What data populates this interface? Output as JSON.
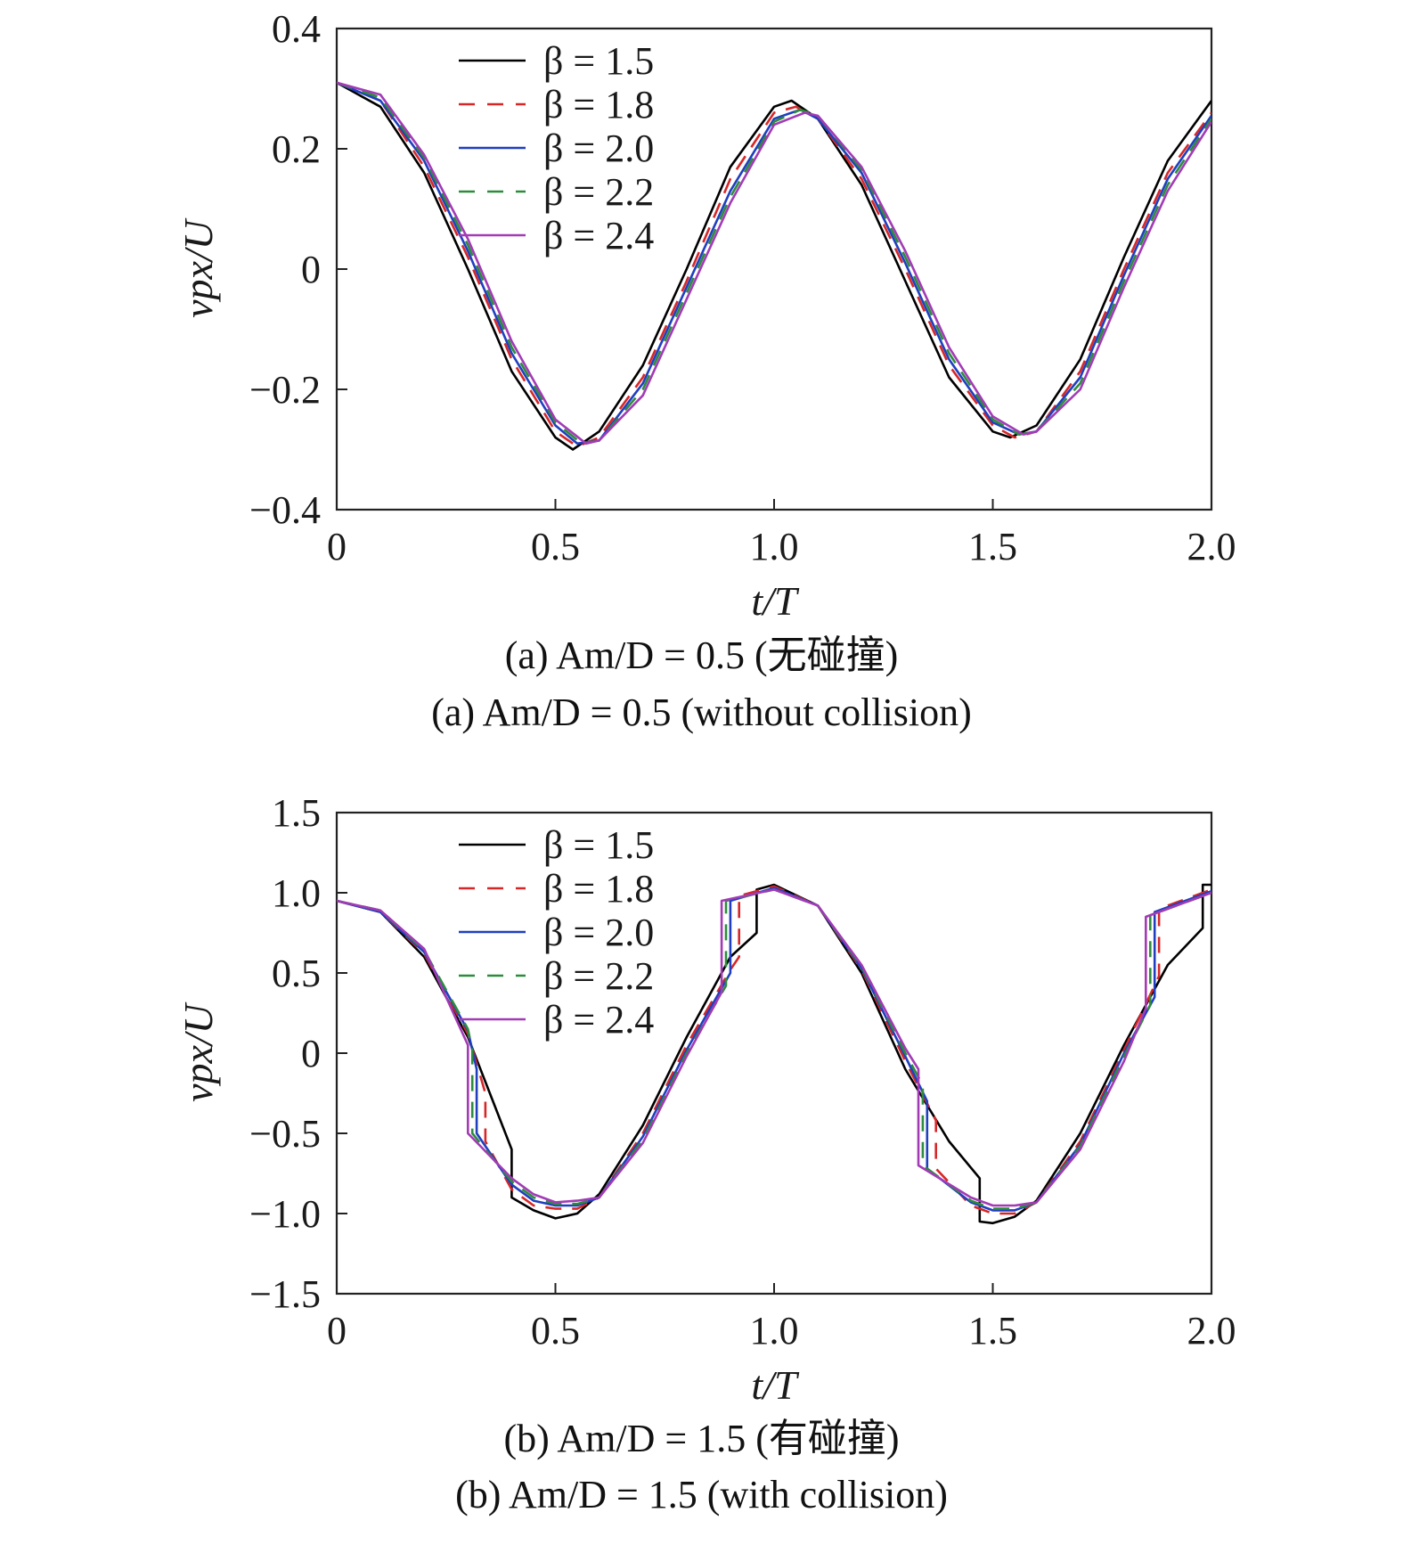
{
  "panels": [
    {
      "id": "a",
      "caption_cn": "(a) Am/D = 0.5 (无碰撞)",
      "caption_en": "(a) Am/D = 0.5 (without collision)"
    },
    {
      "id": "b",
      "caption_cn": "(b) Am/D = 1.5 (有碰撞)",
      "caption_en": "(b) Am/D = 1.5 (with collision)"
    }
  ],
  "chart_data": [
    {
      "type": "line",
      "xlabel": "t/T",
      "ylabel": "vpx/U",
      "xlim": [
        0,
        2
      ],
      "ylim": [
        -0.4,
        0.4
      ],
      "xticks": [
        "0",
        "0.5",
        "1.0",
        "1.5",
        "2.0"
      ],
      "yticks": [
        "−0.4",
        "−0.2",
        "0",
        "0.2",
        "0.4"
      ],
      "grid": false,
      "legend_position": "top-left",
      "series": [
        {
          "name": "β = 1.5",
          "color": "#000000",
          "dash": "solid",
          "x": [
            0,
            0.1,
            0.2,
            0.3,
            0.4,
            0.5,
            0.54,
            0.6,
            0.7,
            0.8,
            0.9,
            1.0,
            1.04,
            1.1,
            1.2,
            1.3,
            1.4,
            1.5,
            1.54,
            1.6,
            1.7,
            1.8,
            1.9,
            2.0
          ],
          "y": [
            0.31,
            0.27,
            0.16,
            0.0,
            -0.17,
            -0.28,
            -0.3,
            -0.27,
            -0.16,
            0.0,
            0.17,
            0.27,
            0.28,
            0.25,
            0.14,
            -0.02,
            -0.18,
            -0.27,
            -0.28,
            -0.26,
            -0.15,
            0.02,
            0.18,
            0.28
          ]
        },
        {
          "name": "β = 1.8",
          "color": "#d62728",
          "dash": "dashed",
          "x": [
            0,
            0.1,
            0.2,
            0.3,
            0.4,
            0.5,
            0.55,
            0.6,
            0.7,
            0.8,
            0.9,
            1.0,
            1.05,
            1.1,
            1.2,
            1.3,
            1.4,
            1.5,
            1.55,
            1.6,
            1.7,
            1.8,
            1.9,
            2.0
          ],
          "y": [
            0.31,
            0.28,
            0.17,
            0.02,
            -0.15,
            -0.27,
            -0.295,
            -0.28,
            -0.18,
            -0.02,
            0.15,
            0.26,
            0.27,
            0.25,
            0.15,
            0.0,
            -0.16,
            -0.26,
            -0.28,
            -0.27,
            -0.17,
            0.0,
            0.16,
            0.26
          ]
        },
        {
          "name": "β = 2.0",
          "color": "#1f3fbf",
          "dash": "solid",
          "x": [
            0,
            0.1,
            0.2,
            0.3,
            0.4,
            0.5,
            0.55,
            0.6,
            0.7,
            0.8,
            0.9,
            1.0,
            1.06,
            1.1,
            1.2,
            1.3,
            1.4,
            1.5,
            1.56,
            1.6,
            1.7,
            1.8,
            1.9,
            2.0
          ],
          "y": [
            0.31,
            0.28,
            0.18,
            0.03,
            -0.14,
            -0.26,
            -0.29,
            -0.285,
            -0.19,
            -0.03,
            0.13,
            0.25,
            0.265,
            0.25,
            0.16,
            0.01,
            -0.15,
            -0.255,
            -0.275,
            -0.27,
            -0.18,
            -0.01,
            0.15,
            0.255
          ]
        },
        {
          "name": "β = 2.2",
          "color": "#2e8b3e",
          "dash": "dashed",
          "x": [
            0,
            0.1,
            0.2,
            0.3,
            0.4,
            0.5,
            0.56,
            0.6,
            0.7,
            0.8,
            0.9,
            1.0,
            1.06,
            1.1,
            1.2,
            1.3,
            1.4,
            1.5,
            1.56,
            1.6,
            1.7,
            1.8,
            1.9,
            2.0
          ],
          "y": [
            0.31,
            0.285,
            0.185,
            0.04,
            -0.13,
            -0.255,
            -0.29,
            -0.285,
            -0.2,
            -0.04,
            0.12,
            0.245,
            0.265,
            0.255,
            0.165,
            0.02,
            -0.14,
            -0.25,
            -0.275,
            -0.27,
            -0.19,
            -0.02,
            0.14,
            0.25
          ]
        },
        {
          "name": "β = 2.4",
          "color": "#a23bb5",
          "dash": "solid",
          "x": [
            0,
            0.1,
            0.2,
            0.3,
            0.4,
            0.5,
            0.57,
            0.6,
            0.7,
            0.8,
            0.9,
            1.0,
            1.07,
            1.1,
            1.2,
            1.3,
            1.4,
            1.5,
            1.57,
            1.6,
            1.7,
            1.8,
            1.9,
            2.0
          ],
          "y": [
            0.31,
            0.29,
            0.19,
            0.05,
            -0.12,
            -0.25,
            -0.29,
            -0.285,
            -0.21,
            -0.05,
            0.11,
            0.24,
            0.26,
            0.255,
            0.17,
            0.03,
            -0.13,
            -0.245,
            -0.275,
            -0.27,
            -0.2,
            -0.03,
            0.13,
            0.245
          ]
        }
      ]
    },
    {
      "type": "line",
      "xlabel": "t/T",
      "ylabel": "vpx/U",
      "xlim": [
        0,
        2
      ],
      "ylim": [
        -1.5,
        1.5
      ],
      "xticks": [
        "0",
        "0.5",
        "1.0",
        "1.5",
        "2.0"
      ],
      "yticks": [
        "−1.5",
        "−1.0",
        "−0.5",
        "0",
        "0.5",
        "1.0",
        "1.5"
      ],
      "grid": false,
      "legend_position": "top-left",
      "series": [
        {
          "name": "β = 1.5",
          "color": "#000000",
          "dash": "solid",
          "x": [
            0,
            0.1,
            0.2,
            0.3,
            0.35,
            0.4,
            0.4,
            0.45,
            0.5,
            0.55,
            0.6,
            0.7,
            0.8,
            0.9,
            0.96,
            0.96,
            1.0,
            1.1,
            1.2,
            1.3,
            1.4,
            1.47,
            1.47,
            1.5,
            1.55,
            1.6,
            1.7,
            1.8,
            1.9,
            1.98,
            1.98,
            2.0
          ],
          "y": [
            0.95,
            0.88,
            0.6,
            0.1,
            -0.25,
            -0.6,
            -0.9,
            -0.98,
            -1.03,
            -1.0,
            -0.88,
            -0.45,
            0.1,
            0.6,
            0.75,
            1.02,
            1.05,
            0.92,
            0.5,
            -0.1,
            -0.55,
            -0.78,
            -1.05,
            -1.06,
            -1.02,
            -0.92,
            -0.5,
            0.05,
            0.55,
            0.78,
            1.05,
            1.05
          ]
        },
        {
          "name": "β = 1.8",
          "color": "#d62728",
          "dash": "dashed",
          "x": [
            0,
            0.1,
            0.2,
            0.3,
            0.34,
            0.34,
            0.4,
            0.45,
            0.5,
            0.55,
            0.6,
            0.7,
            0.8,
            0.9,
            0.92,
            0.92,
            1.0,
            1.1,
            1.2,
            1.3,
            1.37,
            1.37,
            1.45,
            1.5,
            1.55,
            1.6,
            1.7,
            1.8,
            1.88,
            1.88,
            2.0
          ],
          "y": [
            0.95,
            0.88,
            0.62,
            0.12,
            -0.25,
            -0.55,
            -0.85,
            -0.95,
            -0.97,
            -0.97,
            -0.9,
            -0.5,
            0.05,
            0.52,
            0.6,
            0.98,
            1.04,
            0.92,
            0.52,
            -0.05,
            -0.42,
            -0.72,
            -0.95,
            -1.0,
            -1.0,
            -0.93,
            -0.55,
            0.02,
            0.48,
            0.9,
            1.02
          ]
        },
        {
          "name": "β = 2.0",
          "color": "#1f3fbf",
          "dash": "solid",
          "x": [
            0,
            0.1,
            0.2,
            0.3,
            0.32,
            0.32,
            0.4,
            0.45,
            0.5,
            0.55,
            0.6,
            0.7,
            0.8,
            0.9,
            0.9,
            1.0,
            1.1,
            1.2,
            1.3,
            1.35,
            1.35,
            1.45,
            1.5,
            1.55,
            1.6,
            1.7,
            1.8,
            1.87,
            1.87,
            2.0
          ],
          "y": [
            0.95,
            0.88,
            0.63,
            0.14,
            -0.1,
            -0.5,
            -0.82,
            -0.92,
            -0.95,
            -0.95,
            -0.9,
            -0.52,
            0.02,
            0.5,
            0.95,
            1.03,
            0.92,
            0.53,
            -0.02,
            -0.3,
            -0.72,
            -0.93,
            -0.98,
            -0.98,
            -0.93,
            -0.57,
            0.0,
            0.35,
            0.88,
            1.01
          ]
        },
        {
          "name": "β = 2.2",
          "color": "#2e8b3e",
          "dash": "dashed",
          "x": [
            0,
            0.1,
            0.2,
            0.3,
            0.31,
            0.31,
            0.4,
            0.45,
            0.5,
            0.55,
            0.6,
            0.7,
            0.8,
            0.89,
            0.89,
            1.0,
            1.1,
            1.2,
            1.3,
            1.34,
            1.34,
            1.45,
            1.5,
            1.55,
            1.6,
            1.7,
            1.8,
            1.86,
            1.86,
            2.0
          ],
          "y": [
            0.95,
            0.89,
            0.64,
            0.15,
            0.02,
            -0.5,
            -0.8,
            -0.9,
            -0.94,
            -0.94,
            -0.9,
            -0.54,
            0.0,
            0.42,
            0.95,
            1.02,
            0.92,
            0.54,
            0.0,
            -0.2,
            -0.7,
            -0.92,
            -0.97,
            -0.97,
            -0.93,
            -0.58,
            -0.02,
            0.3,
            0.86,
            1.0
          ]
        },
        {
          "name": "β = 2.4",
          "color": "#a23bb5",
          "dash": "solid",
          "x": [
            0,
            0.1,
            0.2,
            0.3,
            0.3,
            0.4,
            0.45,
            0.5,
            0.55,
            0.6,
            0.7,
            0.8,
            0.88,
            0.88,
            1.0,
            1.1,
            1.2,
            1.3,
            1.33,
            1.33,
            1.45,
            1.5,
            1.55,
            1.6,
            1.7,
            1.8,
            1.85,
            1.85,
            2.0
          ],
          "y": [
            0.95,
            0.89,
            0.65,
            0.05,
            -0.5,
            -0.78,
            -0.88,
            -0.93,
            -0.92,
            -0.9,
            -0.56,
            -0.02,
            0.38,
            0.95,
            1.02,
            0.92,
            0.55,
            0.03,
            -0.1,
            -0.7,
            -0.9,
            -0.95,
            -0.95,
            -0.93,
            -0.6,
            -0.05,
            0.28,
            0.85,
            1.0
          ]
        }
      ]
    }
  ]
}
